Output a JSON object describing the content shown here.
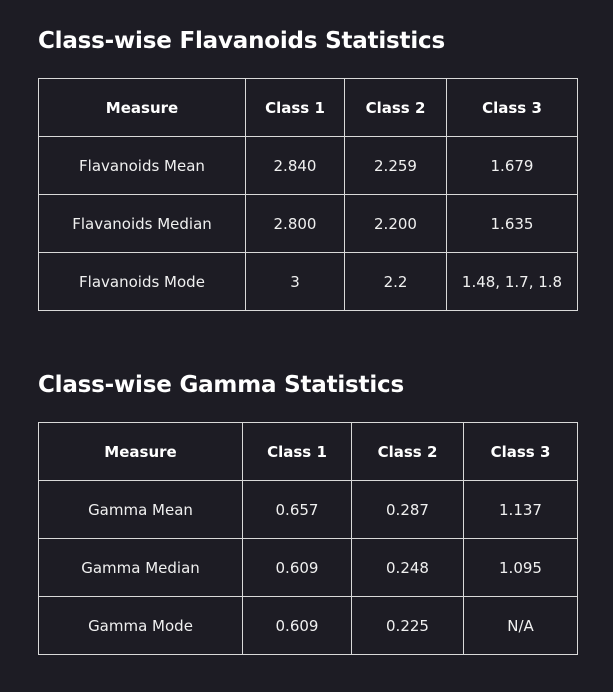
{
  "tables": [
    {
      "title": "Class-wise Flavanoids Statistics",
      "headers": [
        "Measure",
        "Class 1",
        "Class 2",
        "Class 3"
      ],
      "rows": [
        [
          "Flavanoids Mean",
          "2.840",
          "2.259",
          "1.679"
        ],
        [
          "Flavanoids Median",
          "2.800",
          "2.200",
          "1.635"
        ],
        [
          "Flavanoids Mode",
          "3",
          "2.2",
          "1.48, 1.7, 1.8"
        ]
      ]
    },
    {
      "title": "Class-wise Gamma Statistics",
      "headers": [
        "Measure",
        "Class 1",
        "Class 2",
        "Class 3"
      ],
      "rows": [
        [
          "Gamma Mean",
          "0.657",
          "0.287",
          "1.137"
        ],
        [
          "Gamma Median",
          "0.609",
          "0.248",
          "1.095"
        ],
        [
          "Gamma Mode",
          "0.609",
          "0.225",
          "N/A"
        ]
      ]
    }
  ]
}
